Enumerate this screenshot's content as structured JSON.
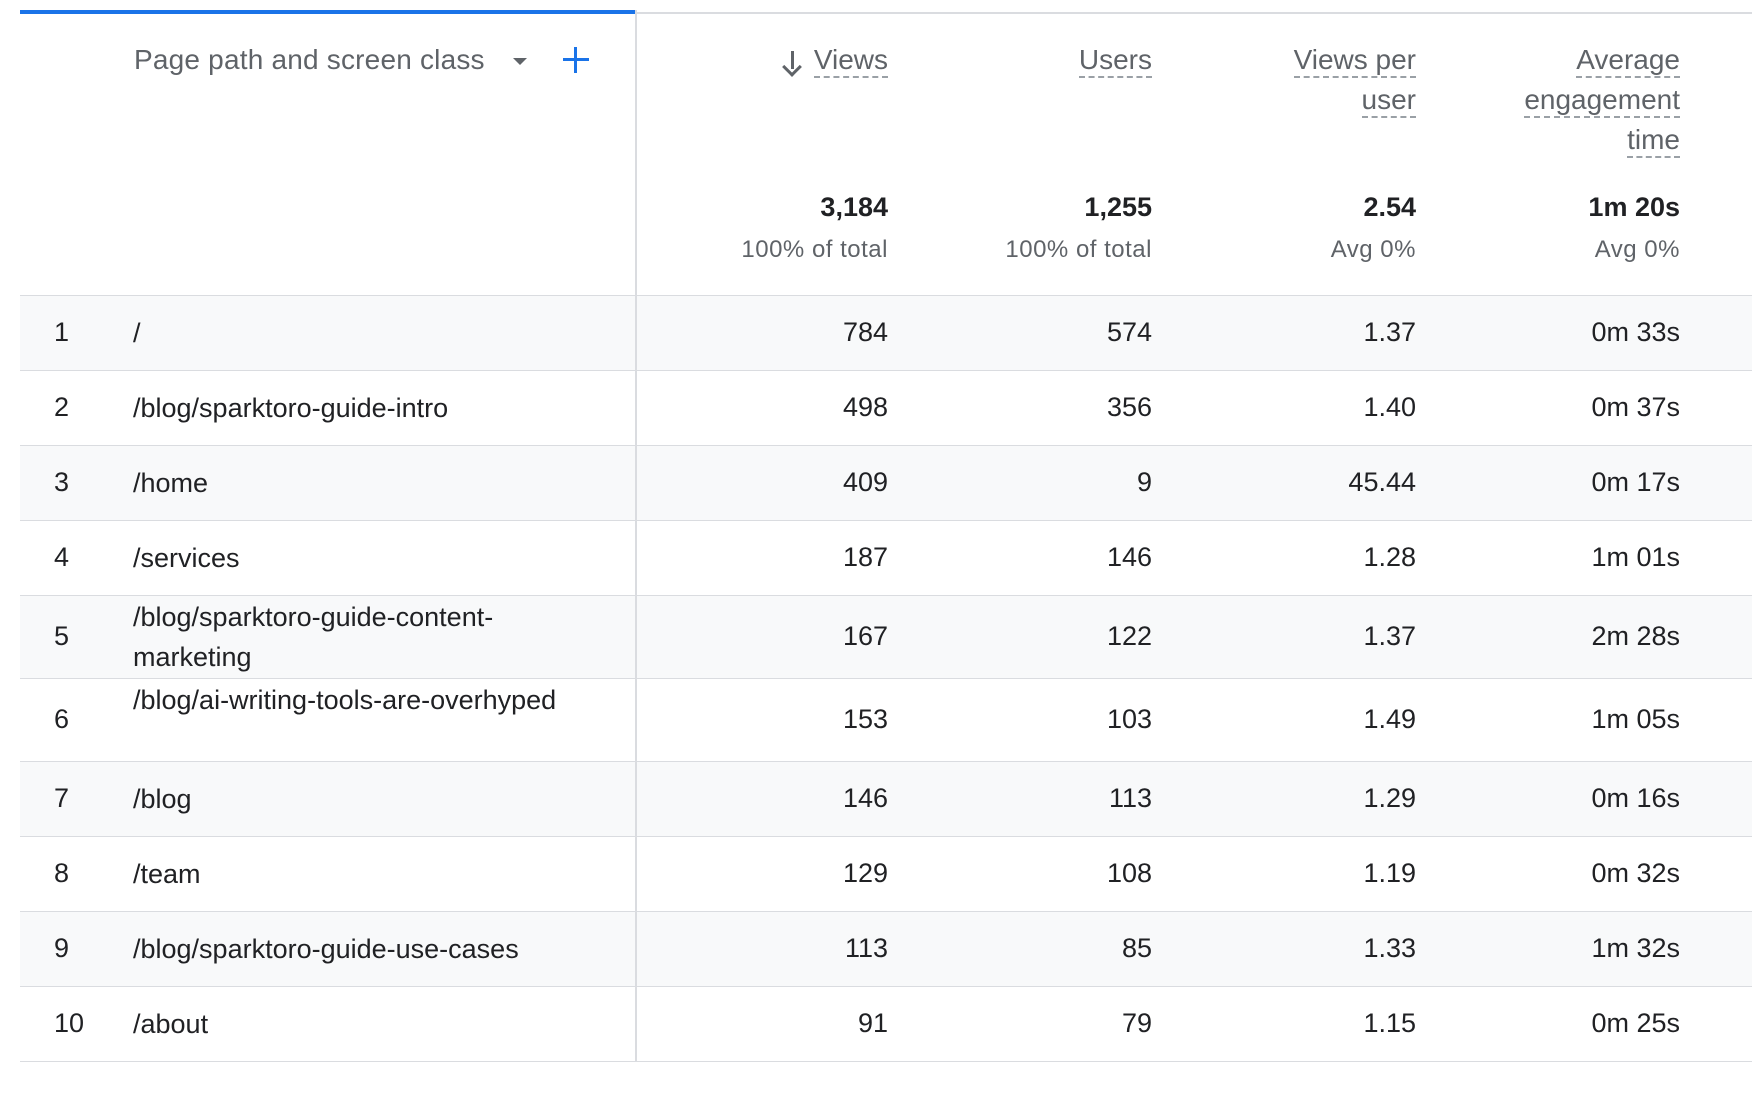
{
  "dimension": {
    "label": "Page path and screen class"
  },
  "metrics": [
    {
      "label_lines": [
        "Views"
      ],
      "total": "3,184",
      "sub": "100% of total",
      "sorted": true
    },
    {
      "label_lines": [
        "Users"
      ],
      "total": "1,255",
      "sub": "100% of total",
      "sorted": false
    },
    {
      "label_lines": [
        "Views per",
        "user"
      ],
      "total": "2.54",
      "sub": "Avg 0%",
      "sorted": false
    },
    {
      "label_lines": [
        "Average",
        "engagement",
        "time"
      ],
      "total": "1m 20s",
      "sub": "Avg 0%",
      "sorted": false
    }
  ],
  "rows": [
    {
      "index": "1",
      "path": "/",
      "views": "784",
      "users": "574",
      "views_per_user": "1.37",
      "avg_engagement": "0m 33s"
    },
    {
      "index": "2",
      "path": "/blog/sparktoro-guide-intro",
      "views": "498",
      "users": "356",
      "views_per_user": "1.40",
      "avg_engagement": "0m 37s"
    },
    {
      "index": "3",
      "path": "/home",
      "views": "409",
      "users": "9",
      "views_per_user": "45.44",
      "avg_engagement": "0m 17s"
    },
    {
      "index": "4",
      "path": "/services",
      "views": "187",
      "users": "146",
      "views_per_user": "1.28",
      "avg_engagement": "1m 01s"
    },
    {
      "index": "5",
      "path": "/blog/sparktoro-guide-content-marketing",
      "views": "167",
      "users": "122",
      "views_per_user": "1.37",
      "avg_engagement": "2m 28s"
    },
    {
      "index": "6",
      "path": "/blog/ai-writing-tools-are-overhyped",
      "views": "153",
      "users": "103",
      "views_per_user": "1.49",
      "avg_engagement": "1m 05s"
    },
    {
      "index": "7",
      "path": "/blog",
      "views": "146",
      "users": "113",
      "views_per_user": "1.29",
      "avg_engagement": "0m 16s"
    },
    {
      "index": "8",
      "path": "/team",
      "views": "129",
      "users": "108",
      "views_per_user": "1.19",
      "avg_engagement": "0m 32s"
    },
    {
      "index": "9",
      "path": "/blog/sparktoro-guide-use-cases",
      "views": "113",
      "users": "85",
      "views_per_user": "1.33",
      "avg_engagement": "1m 32s"
    },
    {
      "index": "10",
      "path": "/about",
      "views": "91",
      "users": "79",
      "views_per_user": "1.15",
      "avg_engagement": "0m 25s"
    }
  ],
  "colors": {
    "accent": "#1a73e8",
    "border": "#dadce0",
    "row_shade": "#f8f9fa",
    "muted_text": "#5f6368"
  }
}
